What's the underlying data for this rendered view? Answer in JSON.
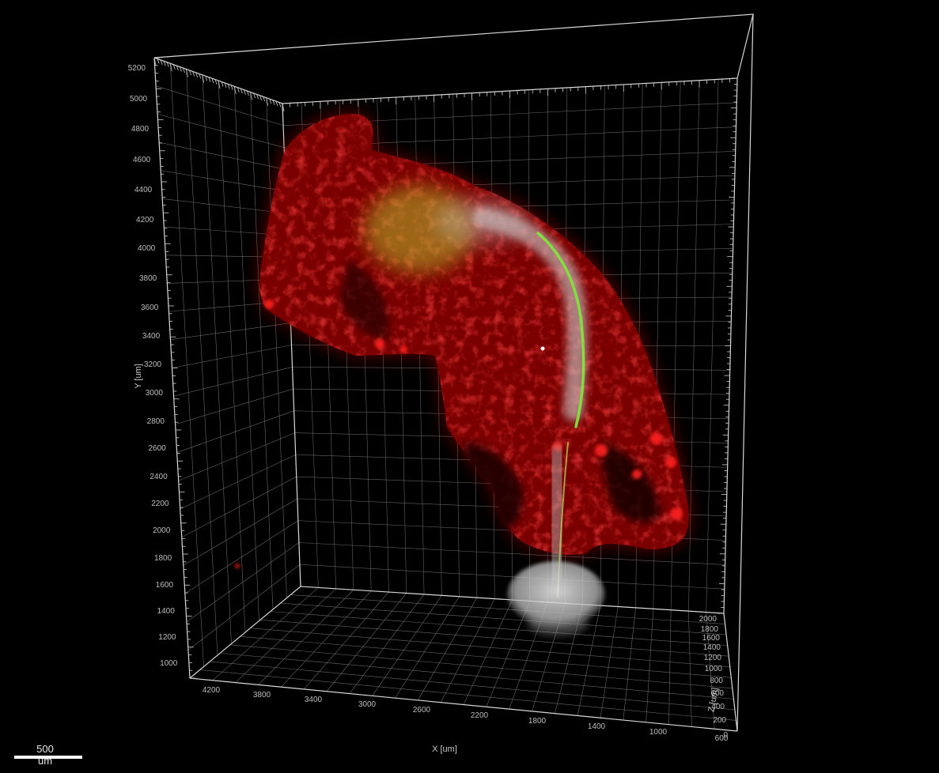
{
  "viewer": {
    "axes": {
      "y": {
        "title": "Y [um]",
        "ticks": [
          "5200",
          "5000",
          "4800",
          "4600",
          "4400",
          "4200",
          "4000",
          "3800",
          "3600",
          "3400",
          "3200",
          "3000",
          "2800",
          "2600",
          "2400",
          "2200",
          "2000",
          "1800",
          "1600",
          "1400",
          "1200",
          "1000"
        ]
      },
      "x": {
        "title": "X [um]",
        "ticks": [
          "4200",
          "3800",
          "3400",
          "3000",
          "2600",
          "2200",
          "1800",
          "1400",
          "1000",
          "600"
        ]
      },
      "z": {
        "title": "Z [um]",
        "ticks": [
          "2000",
          "1800",
          "1600",
          "1400",
          "1200",
          "1000",
          "800",
          "600",
          "400",
          "200",
          "0"
        ]
      }
    },
    "scale_bar": {
      "label": "500 um"
    },
    "colors": {
      "background": "#000000",
      "tissue": "#e81010",
      "neural_tube": "#c8c8c8",
      "notochord": "#7ee63a",
      "grid": "#8a8a8a"
    }
  }
}
